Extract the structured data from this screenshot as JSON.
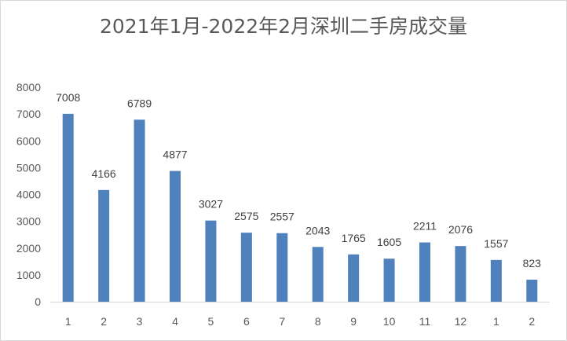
{
  "chart_data": {
    "type": "bar",
    "title": "2021年1月-2022年2月深圳二手房成交量",
    "xlabel": "",
    "ylabel": "",
    "categories": [
      "1",
      "2",
      "3",
      "4",
      "5",
      "6",
      "7",
      "8",
      "9",
      "10",
      "11",
      "12",
      "1",
      "2"
    ],
    "values": [
      7008,
      4166,
      6789,
      4877,
      3027,
      2575,
      2557,
      2043,
      1765,
      1605,
      2211,
      2076,
      1557,
      823
    ],
    "ylim": [
      0,
      8000
    ],
    "yticks": [
      "0",
      "1000",
      "2000",
      "3000",
      "4000",
      "5000",
      "6000",
      "7000",
      "8000"
    ],
    "grid": false,
    "legend": "none",
    "bar_color": "#4f81bd",
    "show_data_labels": true
  }
}
